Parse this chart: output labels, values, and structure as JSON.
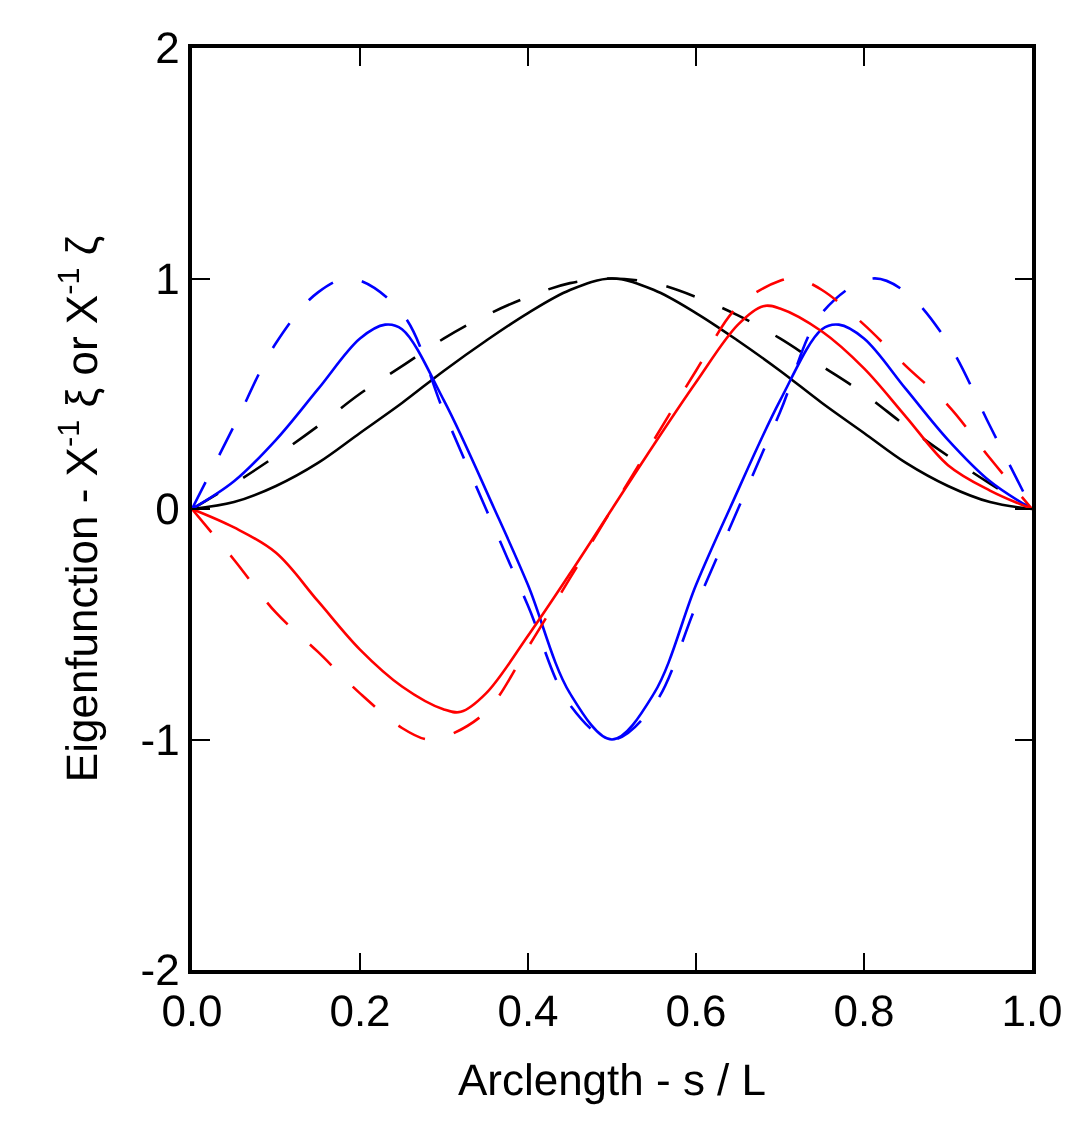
{
  "chart_data": {
    "type": "line",
    "xlabel": "Arclength - s / L",
    "ylabel": "Eigenfunction - X$^{-1}$ ξ or X$^{-1}$ ζ",
    "xlim": [
      0,
      1
    ],
    "ylim": [
      -2,
      2
    ],
    "xticks": [
      {
        "value": 0,
        "label": "0.0"
      },
      {
        "value": 0.2,
        "label": "0.2"
      },
      {
        "value": 0.4,
        "label": "0.4"
      },
      {
        "value": 0.6,
        "label": "0.6"
      },
      {
        "value": 0.8,
        "label": "0.8"
      },
      {
        "value": 1,
        "label": "1.0"
      }
    ],
    "yticks": [
      -2,
      -1,
      0,
      1,
      2
    ],
    "marker": "none",
    "series": [
      {
        "color": "#000000",
        "line_style": "solid",
        "x": [
          0,
          0.05,
          0.1,
          0.15,
          0.2,
          0.25,
          0.3,
          0.35,
          0.4,
          0.45,
          0.5,
          0.55,
          0.6,
          0.65,
          0.7,
          0.75,
          0.8,
          0.85,
          0.9,
          0.95,
          1
        ],
        "values": [
          0,
          0.03,
          0.1,
          0.2,
          0.33,
          0.46,
          0.6,
          0.73,
          0.85,
          0.95,
          1,
          0.95,
          0.85,
          0.73,
          0.6,
          0.46,
          0.33,
          0.2,
          0.1,
          0.03,
          0
        ]
      },
      {
        "color": "#000000",
        "line_style": "dashed",
        "x": [
          0,
          0.05,
          0.1,
          0.15,
          0.2,
          0.25,
          0.3,
          0.35,
          0.4,
          0.45,
          0.5,
          0.55,
          0.6,
          0.65,
          0.7,
          0.75,
          0.8,
          0.85,
          0.9,
          0.95,
          1
        ],
        "values": [
          0,
          0.11,
          0.23,
          0.36,
          0.5,
          0.62,
          0.74,
          0.84,
          0.92,
          0.98,
          1,
          0.98,
          0.92,
          0.84,
          0.74,
          0.62,
          0.5,
          0.36,
          0.23,
          0.11,
          0
        ]
      },
      {
        "color": "#0000ff",
        "line_style": "solid",
        "x": [
          0,
          0.05,
          0.1,
          0.15,
          0.2,
          0.23,
          0.25,
          0.3,
          0.36,
          0.4,
          0.45,
          0.5,
          0.55,
          0.6,
          0.64,
          0.7,
          0.75,
          0.77,
          0.8,
          0.85,
          0.9,
          0.95,
          1
        ],
        "values": [
          0,
          0.12,
          0.3,
          0.52,
          0.74,
          0.8,
          0.78,
          0.47,
          0,
          -0.33,
          -0.8,
          -1,
          -0.8,
          -0.33,
          0,
          0.47,
          0.78,
          0.8,
          0.74,
          0.52,
          0.3,
          0.12,
          0
        ]
      },
      {
        "color": "#0000ff",
        "line_style": "dashed",
        "x": [
          0,
          0.05,
          0.1,
          0.15,
          0.19,
          0.25,
          0.3,
          0.35,
          0.4,
          0.45,
          0.5,
          0.55,
          0.6,
          0.65,
          0.7,
          0.75,
          0.81,
          0.85,
          0.9,
          0.95,
          1
        ],
        "values": [
          0,
          0.36,
          0.72,
          0.94,
          1,
          0.85,
          0.42,
          0,
          -0.42,
          -0.85,
          -1,
          -0.85,
          -0.42,
          0,
          0.42,
          0.85,
          1,
          0.94,
          0.72,
          0.36,
          0
        ]
      },
      {
        "color": "#ff0000",
        "line_style": "solid",
        "x": [
          0,
          0.05,
          0.1,
          0.15,
          0.2,
          0.25,
          0.3,
          0.32,
          0.35,
          0.4,
          0.45,
          0.5,
          0.55,
          0.6,
          0.65,
          0.68,
          0.7,
          0.75,
          0.8,
          0.85,
          0.9,
          0.95,
          1
        ],
        "values": [
          0,
          -0.08,
          -0.19,
          -0.4,
          -0.61,
          -0.77,
          -0.87,
          -0.88,
          -0.8,
          -0.55,
          -0.28,
          0,
          0.28,
          0.55,
          0.8,
          0.88,
          0.87,
          0.77,
          0.61,
          0.4,
          0.19,
          0.08,
          0
        ]
      },
      {
        "color": "#ff0000",
        "line_style": "dashed",
        "x": [
          0,
          0.05,
          0.1,
          0.15,
          0.2,
          0.25,
          0.28,
          0.3,
          0.35,
          0.4,
          0.45,
          0.5,
          0.55,
          0.6,
          0.65,
          0.7,
          0.72,
          0.75,
          0.8,
          0.85,
          0.9,
          0.95,
          1
        ],
        "values": [
          0,
          -0.22,
          -0.45,
          -0.62,
          -0.8,
          -0.95,
          -1,
          -0.99,
          -0.88,
          -0.6,
          -0.3,
          0,
          0.3,
          0.6,
          0.88,
          0.99,
          1,
          0.95,
          0.8,
          0.62,
          0.45,
          0.22,
          0
        ]
      }
    ]
  }
}
